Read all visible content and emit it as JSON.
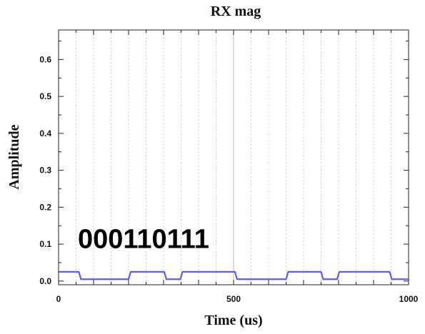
{
  "chart_data": {
    "type": "line",
    "title": "RX mag",
    "xlabel": "Time (us)",
    "ylabel": "Amplitude",
    "xlim": [
      0,
      1000
    ],
    "ylim": [
      -0.01,
      0.68
    ],
    "x_ticks": [
      0,
      500,
      1000
    ],
    "x_tick_labels": [
      "0",
      "500",
      "1000"
    ],
    "y_ticks": [
      0.0,
      0.1,
      0.2,
      0.3,
      0.4,
      0.5,
      0.6
    ],
    "y_tick_labels": [
      "0.0",
      "0.1",
      "0.2",
      "0.3",
      "0.4",
      "0.5",
      "0.6"
    ],
    "grid": true,
    "series": [
      {
        "color": "#5b5bff",
        "x": [
          0,
          58,
          64,
          200,
          206,
          302,
          308,
          348,
          354,
          504,
          510,
          650,
          656,
          750,
          756,
          796,
          802,
          946,
          952,
          1000
        ],
        "y": [
          0.025,
          0.025,
          0.005,
          0.005,
          0.025,
          0.025,
          0.005,
          0.005,
          0.025,
          0.025,
          0.005,
          0.005,
          0.025,
          0.025,
          0.005,
          0.005,
          0.025,
          0.025,
          0.005,
          0.005
        ]
      }
    ],
    "annotations": [
      {
        "text": "000110111",
        "x": 55,
        "y": 0.09
      }
    ]
  }
}
